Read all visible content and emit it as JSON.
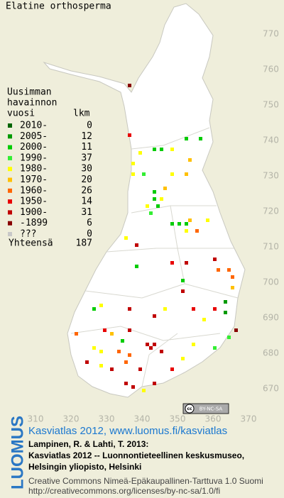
{
  "title": "Elatine orthosperma",
  "legend": {
    "heading": [
      "Uusimman",
      "havainnon",
      "vuosi"
    ],
    "count_heading": "lkm",
    "rows": [
      {
        "label": "2010-",
        "count": 0,
        "color": "#006400"
      },
      {
        "label": "2005-",
        "count": 12,
        "color": "#009a00"
      },
      {
        "label": "2000-",
        "count": 11,
        "color": "#00cc00"
      },
      {
        "label": "1990-",
        "count": 37,
        "color": "#33ee33"
      },
      {
        "label": "1980-",
        "count": 30,
        "color": "#ffff00"
      },
      {
        "label": "1970-",
        "count": 20,
        "color": "#ffc000"
      },
      {
        "label": "1960-",
        "count": 26,
        "color": "#ff6600"
      },
      {
        "label": "1950-",
        "count": 14,
        "color": "#e80000"
      },
      {
        "label": "1900-",
        "count": 31,
        "color": "#c00000"
      },
      {
        "label": "-1899",
        "count": 6,
        "color": "#880000"
      },
      {
        "label": "???",
        "count": 0,
        "color": "#c8c8c8"
      }
    ],
    "total_label": "Yhteensä",
    "total": 187
  },
  "map": {
    "xlim": [
      300,
      380
    ],
    "ylim": [
      660,
      780
    ],
    "xticks": [
      310,
      320,
      330,
      340,
      350,
      360,
      370
    ],
    "yticks": [
      670,
      680,
      690,
      700,
      710,
      720,
      730,
      740,
      750,
      760,
      770
    ],
    "squares": [
      [
        336,
        755,
        9
      ],
      [
        336,
        741,
        7
      ],
      [
        343,
        737,
        2
      ],
      [
        345,
        737,
        2
      ],
      [
        348,
        737,
        4
      ],
      [
        352,
        740,
        2
      ],
      [
        356,
        740,
        2
      ],
      [
        339,
        736,
        4
      ],
      [
        337,
        733,
        4
      ],
      [
        337,
        730,
        4
      ],
      [
        340,
        730,
        3
      ],
      [
        348,
        730,
        4
      ],
      [
        352,
        730,
        5
      ],
      [
        353,
        734,
        5
      ],
      [
        343,
        725,
        2
      ],
      [
        343,
        723,
        2
      ],
      [
        344,
        721,
        2
      ],
      [
        346,
        726,
        5
      ],
      [
        341,
        721,
        4
      ],
      [
        342,
        719,
        3
      ],
      [
        345,
        723,
        4
      ],
      [
        348,
        716,
        2
      ],
      [
        350,
        716,
        2
      ],
      [
        352,
        716,
        2
      ],
      [
        352,
        714,
        4
      ],
      [
        355,
        714,
        6
      ],
      [
        358,
        717,
        4
      ],
      [
        353,
        717,
        5
      ],
      [
        335,
        712,
        4
      ],
      [
        338,
        710,
        8
      ],
      [
        338,
        704,
        2
      ],
      [
        348,
        705,
        7
      ],
      [
        352,
        705,
        8
      ],
      [
        351,
        700,
        2
      ],
      [
        351,
        697,
        8
      ],
      [
        360,
        706,
        8
      ],
      [
        361,
        703,
        6
      ],
      [
        364,
        703,
        6
      ],
      [
        365,
        701,
        6
      ],
      [
        365,
        698,
        5
      ],
      [
        363,
        694,
        1
      ],
      [
        363,
        691,
        1
      ],
      [
        326,
        692,
        2
      ],
      [
        328,
        693,
        4
      ],
      [
        336,
        692,
        8
      ],
      [
        343,
        690,
        8
      ],
      [
        346,
        692,
        4
      ],
      [
        354,
        692,
        7
      ],
      [
        357,
        689,
        4
      ],
      [
        360,
        692,
        7
      ],
      [
        366,
        686,
        9
      ],
      [
        321,
        685,
        6
      ],
      [
        329,
        686,
        7
      ],
      [
        331,
        685,
        5
      ],
      [
        334,
        683,
        2
      ],
      [
        336,
        686,
        8
      ],
      [
        333,
        680,
        6
      ],
      [
        341,
        682,
        8
      ],
      [
        342,
        681,
        8
      ],
      [
        343,
        682,
        8
      ],
      [
        326,
        681,
        4
      ],
      [
        328,
        680,
        4
      ],
      [
        324,
        677,
        8
      ],
      [
        335,
        677,
        6
      ],
      [
        336,
        679,
        6
      ],
      [
        339,
        675,
        8
      ],
      [
        345,
        680,
        8
      ],
      [
        354,
        682,
        4
      ],
      [
        335,
        671,
        8
      ],
      [
        337,
        670,
        8
      ],
      [
        340,
        669,
        4
      ],
      [
        343,
        671,
        8
      ],
      [
        348,
        675,
        7
      ],
      [
        351,
        678,
        4
      ],
      [
        360,
        681,
        3
      ],
      [
        364,
        684,
        3
      ],
      [
        328,
        676,
        4
      ],
      [
        331,
        675,
        8
      ]
    ]
  },
  "badge": [
    "cc",
    "BY-NC-SA"
  ],
  "footer": {
    "link": "Kasviatlas 2012, www.luomus.fi/kasviatlas",
    "citation": [
      "Lampinen, R. & Lahti, T. 2013:",
      "Kasviatlas 2012 -- Luonnontieteellinen keskusmuseo,",
      "Helsingin yliopisto, Helsinki"
    ],
    "license": [
      "Creative Commons Nimeä-Epäkaupallinen-Tarttuva 1.0 Suomi",
      "http://creativecommons.org/licenses/by-nc-sa/1.0/fi"
    ],
    "logo": "LUOMUS"
  }
}
